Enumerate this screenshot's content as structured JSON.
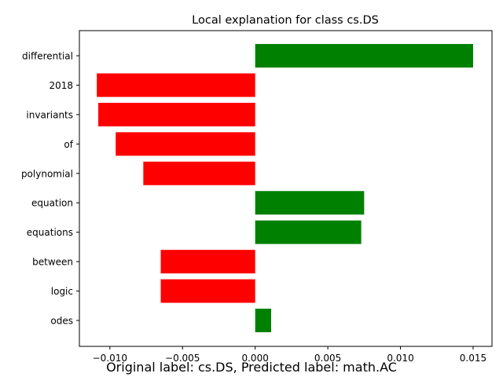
{
  "chart_data": {
    "type": "bar",
    "orientation": "horizontal",
    "title": "Local explanation for class cs.DS",
    "xlabel": "",
    "ylabel": "",
    "categories": [
      "differential",
      "2018",
      "invariants",
      "of",
      "polynomial",
      "equation",
      "equations",
      "between",
      "logic",
      "odes"
    ],
    "values": [
      0.015,
      -0.0109,
      -0.0108,
      -0.0096,
      -0.0077,
      0.0075,
      0.0073,
      -0.0065,
      -0.0065,
      0.0011
    ],
    "xlim": [
      -0.0121,
      0.0163
    ],
    "xticks": [
      -0.01,
      -0.005,
      0.0,
      0.005,
      0.01,
      0.015
    ],
    "xtick_labels": [
      "−0.010",
      "−0.005",
      "0.000",
      "0.005",
      "0.010",
      "0.015"
    ],
    "positive_color": "#008000",
    "negative_color": "#ff0000",
    "grid": false
  },
  "caption": "Original label: cs.DS, Predicted label: math.AC"
}
